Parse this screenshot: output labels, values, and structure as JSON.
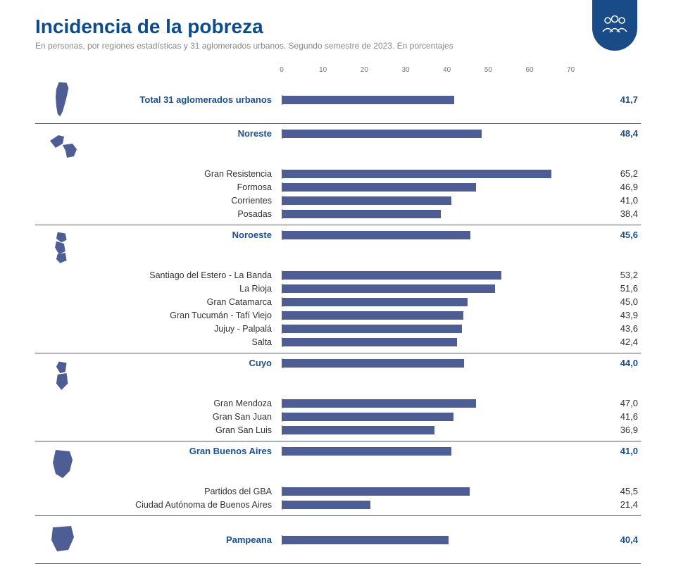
{
  "title": "Incidencia de la pobreza",
  "subtitle": "En personas, por regiones estadísticas y 31 aglomerados urbanos. Segundo semestre de 2023. En porcentajes",
  "axis": {
    "min": 0,
    "max": 75,
    "step": 10,
    "ticks": [
      "0",
      "10",
      "20",
      "30",
      "40",
      "50",
      "60",
      "70"
    ]
  },
  "colors": {
    "accent": "#184b88",
    "head_text": "#1a4f92",
    "bar": "#4e5d94",
    "divider": "#555d72",
    "subtitle": "#888888"
  },
  "sections": [
    {
      "map": "argentina",
      "rows": [
        {
          "label": "Total 31 aglomerados urbanos",
          "value": 41.7,
          "value_text": "41,7",
          "is_head": true
        }
      ]
    },
    {
      "map": "noreste",
      "rows": [
        {
          "label": "Noreste",
          "value": 48.4,
          "value_text": "48,4",
          "is_head": true
        },
        {
          "label": "Gran Resistencia",
          "value": 65.2,
          "value_text": "65,2"
        },
        {
          "label": "Formosa",
          "value": 46.9,
          "value_text": "46,9"
        },
        {
          "label": "Corrientes",
          "value": 41.0,
          "value_text": "41,0"
        },
        {
          "label": "Posadas",
          "value": 38.4,
          "value_text": "38,4"
        }
      ]
    },
    {
      "map": "noroeste",
      "rows": [
        {
          "label": "Noroeste",
          "value": 45.6,
          "value_text": "45,6",
          "is_head": true
        },
        {
          "label": "Santiago del Estero - La Banda",
          "value": 53.2,
          "value_text": "53,2"
        },
        {
          "label": "La Rioja",
          "value": 51.6,
          "value_text": "51,6"
        },
        {
          "label": "Gran Catamarca",
          "value": 45.0,
          "value_text": "45,0"
        },
        {
          "label": "Gran Tucumán - Tafí Viejo",
          "value": 43.9,
          "value_text": "43,9"
        },
        {
          "label": "Jujuy -  Palpalá",
          "value": 43.6,
          "value_text": "43,6"
        },
        {
          "label": "Salta",
          "value": 42.4,
          "value_text": "42,4"
        }
      ]
    },
    {
      "map": "cuyo",
      "rows": [
        {
          "label": "Cuyo",
          "value": 44.0,
          "value_text": "44,0",
          "is_head": true
        },
        {
          "label": "Gran Mendoza",
          "value": 47.0,
          "value_text": "47,0"
        },
        {
          "label": "Gran San Juan",
          "value": 41.6,
          "value_text": "41,6"
        },
        {
          "label": "Gran San Luis",
          "value": 36.9,
          "value_text": "36,9"
        }
      ]
    },
    {
      "map": "gba",
      "rows": [
        {
          "label": "Gran Buenos Aires",
          "value": 41.0,
          "value_text": "41,0",
          "is_head": true
        },
        {
          "label": "Partidos del GBA",
          "value": 45.5,
          "value_text": "45,5"
        },
        {
          "label": "Ciudad Autónoma de Buenos Aires",
          "value": 21.4,
          "value_text": "21,4"
        }
      ]
    },
    {
      "map": "pampeana",
      "rows": [
        {
          "label": "Pampeana",
          "value": 40.4,
          "value_text": "40,4",
          "is_head": true
        }
      ]
    }
  ]
}
